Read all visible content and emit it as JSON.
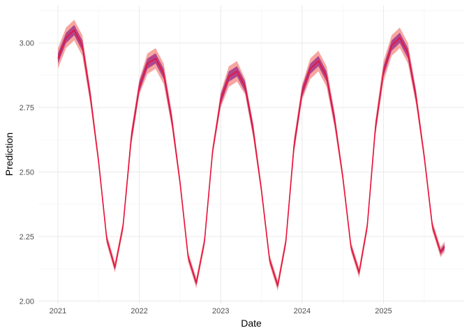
{
  "chart_data": {
    "type": "line",
    "x_label": "Date",
    "y_label": "Prediction",
    "x": [
      2021.0,
      2021.1,
      2021.2,
      2021.3,
      2021.4,
      2021.5,
      2021.6,
      2021.7,
      2021.8,
      2021.9,
      2022.0,
      2022.1,
      2022.2,
      2022.3,
      2022.4,
      2022.5,
      2022.6,
      2022.7,
      2022.8,
      2022.9,
      2023.0,
      2023.1,
      2023.2,
      2023.3,
      2023.4,
      2023.5,
      2023.6,
      2023.7,
      2023.8,
      2023.9,
      2024.0,
      2024.1,
      2024.2,
      2024.3,
      2024.4,
      2024.5,
      2024.6,
      2024.7,
      2024.8,
      2024.9,
      2025.0,
      2025.1,
      2025.2,
      2025.3,
      2025.4,
      2025.5,
      2025.6,
      2025.7,
      2025.75
    ],
    "bands": [
      {
        "color": "#f4978e",
        "lower": [
          2.9,
          2.98,
          3.01,
          2.95,
          2.76,
          2.52,
          2.22,
          2.11,
          2.27,
          2.6,
          2.8,
          2.88,
          2.9,
          2.84,
          2.67,
          2.44,
          2.15,
          2.05,
          2.21,
          2.56,
          2.75,
          2.83,
          2.85,
          2.8,
          2.63,
          2.41,
          2.14,
          2.04,
          2.21,
          2.57,
          2.78,
          2.86,
          2.89,
          2.83,
          2.67,
          2.46,
          2.19,
          2.09,
          2.27,
          2.64,
          2.85,
          2.95,
          2.98,
          2.92,
          2.76,
          2.54,
          2.27,
          2.17,
          2.19
        ],
        "upper": [
          2.98,
          3.06,
          3.09,
          3.03,
          2.82,
          2.56,
          2.26,
          2.15,
          2.31,
          2.66,
          2.86,
          2.96,
          2.98,
          2.92,
          2.73,
          2.48,
          2.19,
          2.09,
          2.25,
          2.6,
          2.81,
          2.91,
          2.93,
          2.86,
          2.69,
          2.45,
          2.18,
          2.08,
          2.25,
          2.63,
          2.84,
          2.94,
          2.97,
          2.91,
          2.73,
          2.5,
          2.23,
          2.13,
          2.31,
          2.7,
          2.93,
          3.03,
          3.06,
          3.0,
          2.82,
          2.58,
          2.31,
          2.21,
          2.23
        ]
      },
      {
        "color": "#a4348a",
        "lower": [
          2.92,
          3.0,
          3.03,
          2.97,
          2.77,
          2.53,
          2.23,
          2.12,
          2.28,
          2.61,
          2.81,
          2.9,
          2.92,
          2.86,
          2.68,
          2.45,
          2.16,
          2.06,
          2.22,
          2.57,
          2.76,
          2.85,
          2.87,
          2.81,
          2.64,
          2.42,
          2.15,
          2.05,
          2.22,
          2.58,
          2.79,
          2.88,
          2.91,
          2.85,
          2.68,
          2.47,
          2.2,
          2.1,
          2.28,
          2.65,
          2.87,
          2.97,
          3.0,
          2.94,
          2.77,
          2.55,
          2.28,
          2.18,
          2.2
        ],
        "upper": [
          2.96,
          3.04,
          3.07,
          3.01,
          2.81,
          2.55,
          2.25,
          2.14,
          2.3,
          2.65,
          2.85,
          2.94,
          2.96,
          2.9,
          2.72,
          2.47,
          2.18,
          2.08,
          2.24,
          2.59,
          2.8,
          2.89,
          2.91,
          2.85,
          2.68,
          2.44,
          2.17,
          2.07,
          2.24,
          2.62,
          2.83,
          2.92,
          2.95,
          2.89,
          2.72,
          2.49,
          2.22,
          2.12,
          2.3,
          2.69,
          2.91,
          3.01,
          3.04,
          2.98,
          2.81,
          2.57,
          2.3,
          2.2,
          2.22
        ]
      }
    ],
    "series": [
      {
        "color": "#e8123c",
        "values": [
          2.94,
          3.02,
          3.05,
          2.99,
          2.79,
          2.54,
          2.24,
          2.13,
          2.29,
          2.63,
          2.83,
          2.92,
          2.94,
          2.88,
          2.7,
          2.46,
          2.17,
          2.07,
          2.23,
          2.58,
          2.78,
          2.87,
          2.89,
          2.83,
          2.66,
          2.43,
          2.16,
          2.06,
          2.23,
          2.6,
          2.81,
          2.9,
          2.93,
          2.87,
          2.7,
          2.48,
          2.21,
          2.11,
          2.29,
          2.67,
          2.89,
          2.99,
          3.02,
          2.96,
          2.79,
          2.56,
          2.29,
          2.19,
          2.21
        ]
      }
    ],
    "xlim": [
      2020.76,
      2025.99
    ],
    "ylim": [
      1.99,
      3.145
    ],
    "xticks": [
      2021,
      2022,
      2023,
      2024,
      2025
    ],
    "yticks": [
      {
        "value": 2,
        "label": "2.00"
      },
      2.25,
      {
        "value": 2.5,
        "label": "2.50"
      },
      2.75,
      {
        "value": 3,
        "label": "3.00"
      }
    ],
    "grid": true
  }
}
